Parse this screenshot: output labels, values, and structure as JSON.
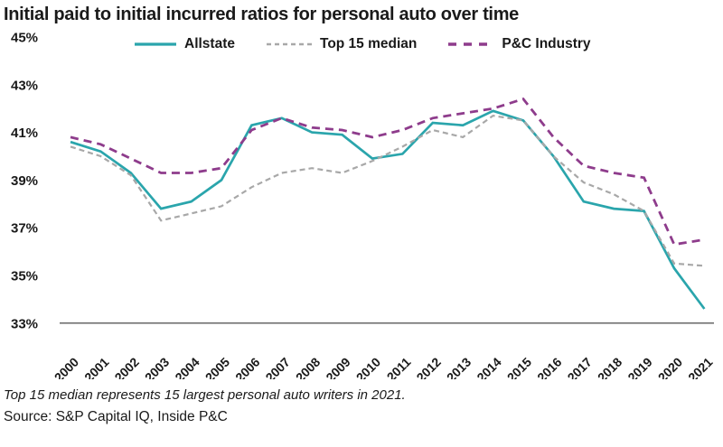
{
  "chart_data": {
    "type": "line",
    "title": "Initial paid to initial incurred ratios for personal auto over time",
    "xlabel": "",
    "ylabel": "",
    "x_categories": [
      "2000",
      "2001",
      "2002",
      "2003",
      "2004",
      "2005",
      "2006",
      "2007",
      "2008",
      "2009",
      "2010",
      "2011",
      "2012",
      "2013",
      "2014",
      "2015",
      "2016",
      "2017",
      "2018",
      "2019",
      "2020",
      "2021"
    ],
    "y_tick_labels": [
      "45%",
      "43%",
      "41%",
      "39%",
      "37%",
      "35%",
      "33%"
    ],
    "y_tick_values": [
      45,
      43,
      41,
      39,
      37,
      35,
      33
    ],
    "ylim": [
      33,
      45
    ],
    "grid": false,
    "legend_position": "top",
    "series": [
      {
        "name": "Allstate",
        "color": "#2aa5ac",
        "style": "solid",
        "values": [
          40.6,
          40.2,
          39.3,
          37.8,
          38.1,
          39.0,
          41.3,
          41.6,
          41.0,
          40.9,
          39.9,
          40.1,
          41.4,
          41.3,
          41.9,
          41.5,
          40.0,
          38.1,
          37.8,
          37.7,
          35.3,
          33.6
        ]
      },
      {
        "name": "Top 15 median",
        "color": "#a8a8a8",
        "style": "dashed-small",
        "values": [
          40.4,
          40.0,
          39.2,
          37.3,
          37.6,
          37.9,
          38.7,
          39.3,
          39.5,
          39.3,
          39.8,
          40.4,
          41.1,
          40.8,
          41.7,
          41.5,
          40.0,
          38.9,
          38.4,
          37.7,
          35.5,
          35.4
        ]
      },
      {
        "name": "P&C Industry",
        "color": "#8e3c8c",
        "style": "dashed",
        "values": [
          40.8,
          40.5,
          39.9,
          39.3,
          39.3,
          39.5,
          41.1,
          41.6,
          41.2,
          41.1,
          40.8,
          41.1,
          41.6,
          41.8,
          42.0,
          42.4,
          40.8,
          39.6,
          39.3,
          39.1,
          36.3,
          36.5
        ]
      }
    ],
    "axis_color": "#595959"
  },
  "footnote": "Top 15 median represents 15 largest personal auto writers in 2021.",
  "source": "Source: S&P Capital IQ, Inside P&C"
}
